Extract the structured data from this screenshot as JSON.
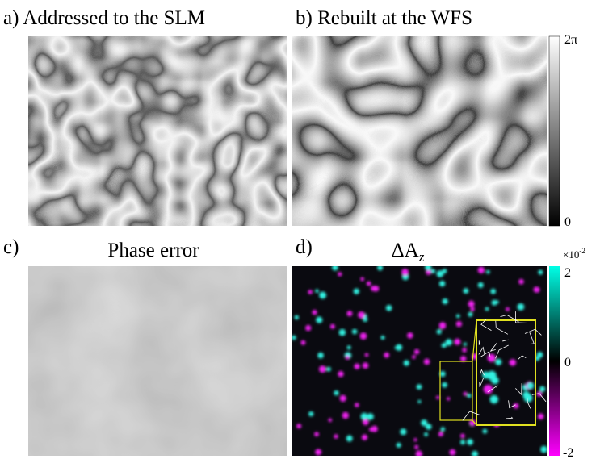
{
  "panels": [
    {
      "label": "a) Addressed to the SLM"
    },
    {
      "label": "b) Rebuilt at the WFS"
    },
    {
      "label": "c)",
      "title": "Phase error"
    },
    {
      "label": "d)",
      "title": "ΔA",
      "title_sub": "z"
    }
  ],
  "colorbars": [
    {
      "top": "2π",
      "bottom": "0"
    },
    {
      "scale": "×10",
      "scale_exp": "-2",
      "top": "2",
      "middle": "0",
      "bottom": "-2"
    }
  ]
}
